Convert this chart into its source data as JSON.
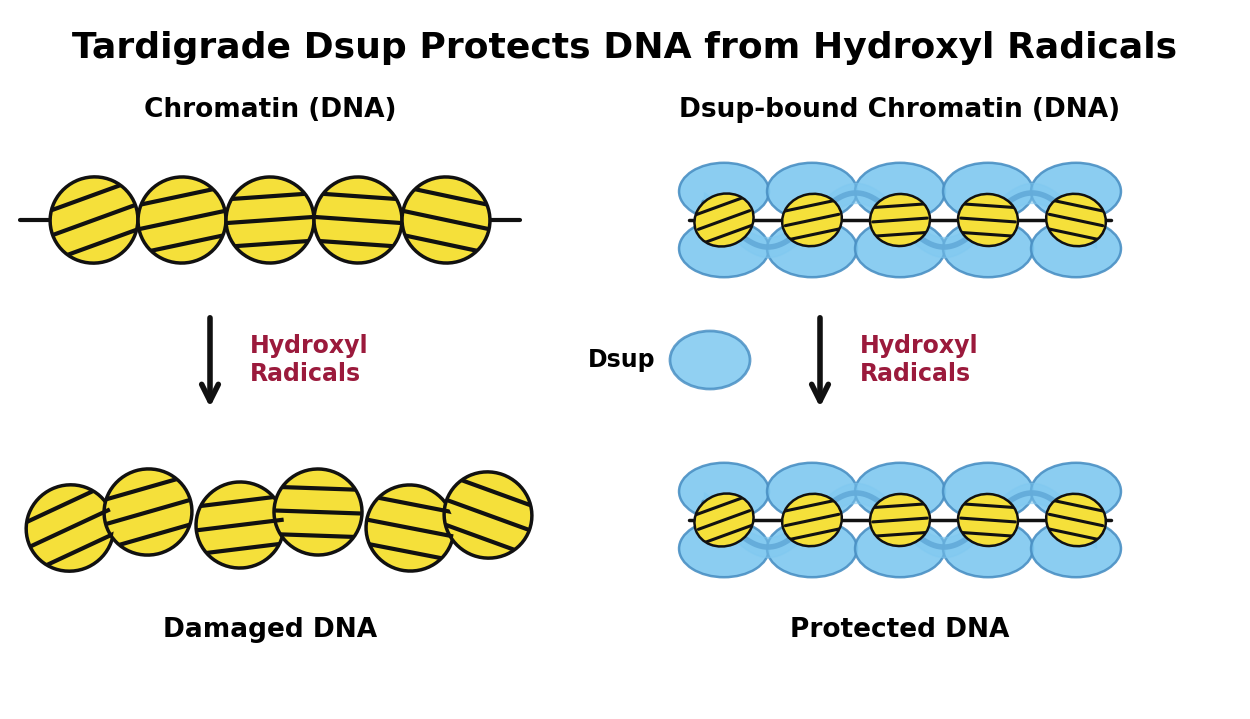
{
  "title": "Tardigrade Dsup Protects DNA from Hydroxyl Radicals",
  "title_fontsize": 26,
  "title_fontweight": "bold",
  "bg_color": "#ffffff",
  "left_top_label": "Chromatin (DNA)",
  "right_top_label": "Dsup-bound Chromatin (DNA)",
  "left_bottom_label": "Damaged DNA",
  "right_bottom_label": "Protected DNA",
  "hydroxyl_label": "Hydroxyl\nRadicals",
  "hydroxyl_color": "#9b1a3c",
  "dsup_label": "Dsup",
  "label_fontsize": 19,
  "label_fontweight": "bold",
  "nucleosome_yellow": "#F5E03A",
  "nucleosome_blue": "#7EC8F0",
  "nucleosome_blue_dark": "#4A90C4",
  "nucleosome_blue_light": "#A8D8F0",
  "outline_color": "#111111",
  "stripe_color": "#111111",
  "dna_line_color": "#111111",
  "arrow_color": "#111111"
}
